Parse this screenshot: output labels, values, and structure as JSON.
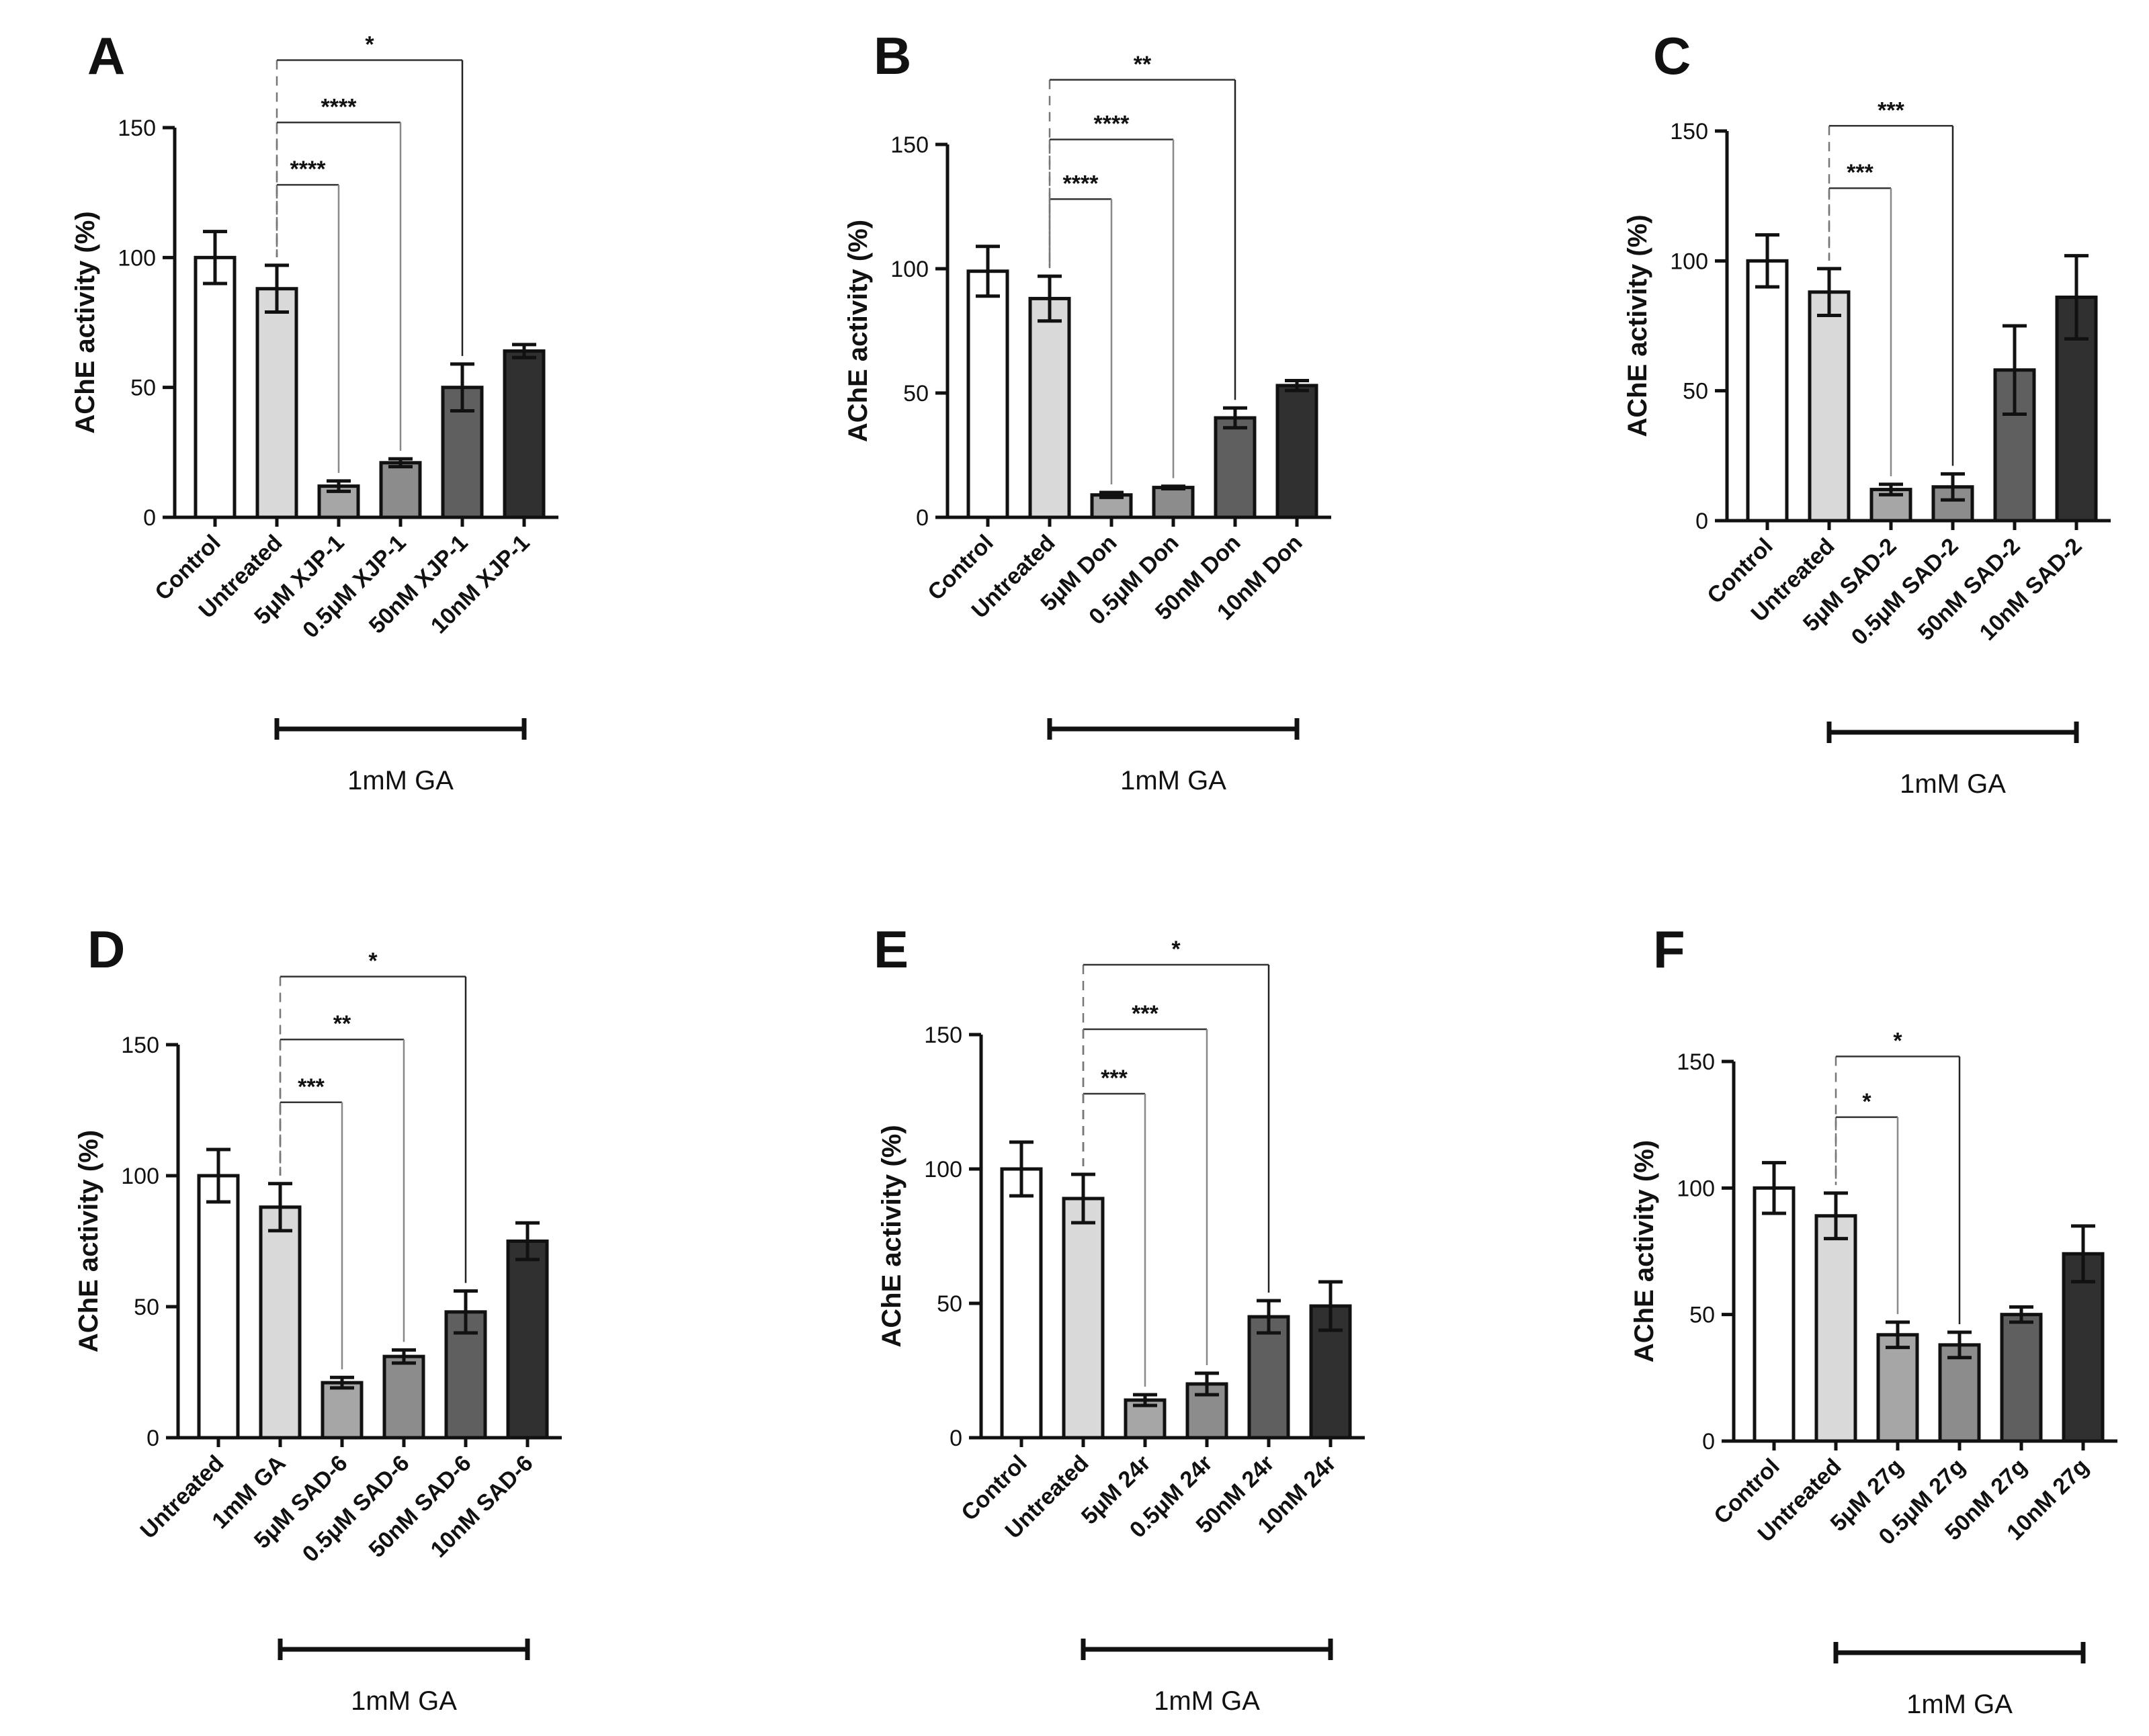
{
  "figure": {
    "y_axis_label": "AChE activity (%)",
    "y_ticks": [
      0,
      50,
      100,
      150
    ],
    "bar_colors": [
      "#ffffff",
      "#d9d9d9",
      "#a6a6a6",
      "#8c8c8c",
      "#5f5f5f",
      "#303030"
    ]
  },
  "chart_data": [
    {
      "panel": "A",
      "type": "bar",
      "ylabel": "AChE activity (%)",
      "ylim": [
        0,
        150
      ],
      "categories": [
        "Control",
        "Untreated",
        "5μM XJP-1",
        "0.5μM XJP-1",
        "50nM XJP-1",
        "10nM XJP-1"
      ],
      "values": [
        100,
        88,
        12,
        21,
        50,
        64
      ],
      "errors": [
        10,
        9,
        2,
        1.5,
        9,
        2.5
      ],
      "significance": [
        {
          "from": 1,
          "to": 2,
          "label": "****",
          "y": 128
        },
        {
          "from": 1,
          "to": 3,
          "label": "****",
          "y": 152
        },
        {
          "from": 1,
          "to": 4,
          "label": "*",
          "y": 176
        }
      ],
      "bracket_label": "1mM  GA",
      "bracket_from": 1,
      "bracket_to": 5
    },
    {
      "panel": "B",
      "type": "bar",
      "ylabel": "AChE activity (%)",
      "ylim": [
        0,
        150
      ],
      "categories": [
        "Control",
        "Untreated",
        "5μM Don",
        "0.5μM Don",
        "50nM Don",
        "10nM Don"
      ],
      "values": [
        99,
        88,
        9,
        12,
        40,
        53
      ],
      "errors": [
        10,
        9,
        1,
        0.5,
        4,
        2
      ],
      "significance": [
        {
          "from": 1,
          "to": 2,
          "label": "****",
          "y": 128
        },
        {
          "from": 1,
          "to": 3,
          "label": "****",
          "y": 152
        },
        {
          "from": 1,
          "to": 4,
          "label": "**",
          "y": 176
        }
      ],
      "bracket_label": "1mM GA",
      "bracket_from": 1,
      "bracket_to": 5
    },
    {
      "panel": "C",
      "type": "bar",
      "ylabel": "AChE activity (%)",
      "ylim": [
        0,
        150
      ],
      "categories": [
        "Control",
        "Untreated",
        "5μM SAD-2",
        "0.5μM SAD-2",
        "50nM SAD-2",
        "10nM SAD-2"
      ],
      "values": [
        100,
        88,
        12,
        13,
        58,
        86
      ],
      "errors": [
        10,
        9,
        2,
        5,
        17,
        16
      ],
      "significance": [
        {
          "from": 1,
          "to": 2,
          "label": "***",
          "y": 128
        },
        {
          "from": 1,
          "to": 3,
          "label": "***",
          "y": 152
        }
      ],
      "bracket_label": "1mM  GA",
      "bracket_from": 1,
      "bracket_to": 5
    },
    {
      "panel": "D",
      "type": "bar",
      "ylabel": "AChE activity (%)",
      "ylim": [
        0,
        150
      ],
      "categories": [
        "Untreated",
        "1mM GA",
        "5μM SAD-6",
        "0.5μM SAD-6",
        "50nM SAD-6",
        "10nM SAD-6"
      ],
      "values": [
        100,
        88,
        21,
        31,
        48,
        75
      ],
      "errors": [
        10,
        9,
        2,
        2.5,
        8,
        7
      ],
      "significance": [
        {
          "from": 1,
          "to": 2,
          "label": "***",
          "y": 128
        },
        {
          "from": 1,
          "to": 3,
          "label": "**",
          "y": 152
        },
        {
          "from": 1,
          "to": 4,
          "label": "*",
          "y": 176
        }
      ],
      "bracket_label": "1mM  GA",
      "bracket_from": 1,
      "bracket_to": 5
    },
    {
      "panel": "E",
      "type": "bar",
      "ylabel": "AChE activity (%)",
      "ylim": [
        0,
        150
      ],
      "categories": [
        "Control",
        "Untreated",
        "5μM 24r",
        "0.5μM 24r",
        "50nM 24r",
        "10nM 24r"
      ],
      "values": [
        100,
        89,
        14,
        20,
        45,
        49
      ],
      "errors": [
        10,
        9,
        2,
        4,
        6,
        9
      ],
      "significance": [
        {
          "from": 1,
          "to": 2,
          "label": "***",
          "y": 128
        },
        {
          "from": 1,
          "to": 3,
          "label": "***",
          "y": 152
        },
        {
          "from": 1,
          "to": 4,
          "label": "*",
          "y": 176
        }
      ],
      "bracket_label": "1mM GA",
      "bracket_from": 1,
      "bracket_to": 5
    },
    {
      "panel": "F",
      "type": "bar",
      "ylabel": "AChE activity (%)",
      "ylim": [
        0,
        150
      ],
      "categories": [
        "Control",
        "Untreated",
        "5μM 27g",
        "0.5μM 27g",
        "50nM 27g",
        "10nM 27g"
      ],
      "values": [
        100,
        89,
        42,
        38,
        50,
        74
      ],
      "errors": [
        10,
        9,
        5,
        5,
        3,
        11
      ],
      "significance": [
        {
          "from": 1,
          "to": 2,
          "label": "*",
          "y": 128
        },
        {
          "from": 1,
          "to": 3,
          "label": "*",
          "y": 152
        }
      ],
      "bracket_label": "1mM  GA",
      "bracket_from": 1,
      "bracket_to": 5
    }
  ]
}
